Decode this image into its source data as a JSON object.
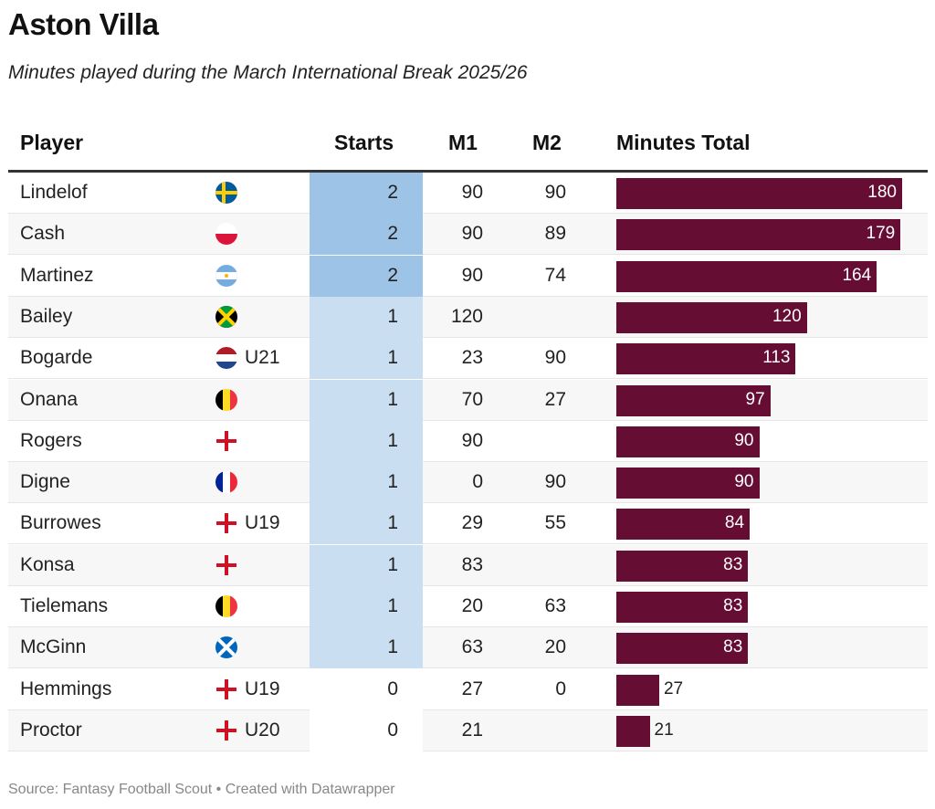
{
  "title": "Aston Villa",
  "subtitle": "Minutes played during the March International Break 2025/26",
  "source": "Source: Fantasy Football Scout • Created with Datawrapper",
  "colors": {
    "bar": "#650d33",
    "starts2": "#9dc3e6",
    "starts1": "#c9def0",
    "zebra": "#f7f7f7"
  },
  "chart_data": {
    "type": "table",
    "columns": [
      "Player",
      "",
      "Starts",
      "M1",
      "M2",
      "Minutes Total"
    ],
    "bar_max": 180,
    "rows": [
      {
        "player": "Lindelof",
        "flag": "sweden",
        "tag": "",
        "starts": "2",
        "m1": "90",
        "m2": "90",
        "total": 180
      },
      {
        "player": "Cash",
        "flag": "poland",
        "tag": "",
        "starts": "2",
        "m1": "90",
        "m2": "89",
        "total": 179
      },
      {
        "player": "Martinez",
        "flag": "argentina",
        "tag": "",
        "starts": "2",
        "m1": "90",
        "m2": "74",
        "total": 164
      },
      {
        "player": "Bailey",
        "flag": "jamaica",
        "tag": "",
        "starts": "1",
        "m1": "120",
        "m2": "",
        "total": 120
      },
      {
        "player": "Bogarde",
        "flag": "netherlands",
        "tag": "U21",
        "starts": "1",
        "m1": "23",
        "m2": "90",
        "total": 113
      },
      {
        "player": "Onana",
        "flag": "belgium",
        "tag": "",
        "starts": "1",
        "m1": "70",
        "m2": "27",
        "total": 97
      },
      {
        "player": "Rogers",
        "flag": "england",
        "tag": "",
        "starts": "1",
        "m1": "90",
        "m2": "",
        "total": 90
      },
      {
        "player": "Digne",
        "flag": "france",
        "tag": "",
        "starts": "1",
        "m1": "0",
        "m2": "90",
        "total": 90
      },
      {
        "player": "Burrowes",
        "flag": "england",
        "tag": "U19",
        "starts": "1",
        "m1": "29",
        "m2": "55",
        "total": 84
      },
      {
        "player": "Konsa",
        "flag": "england",
        "tag": "",
        "starts": "1",
        "m1": "83",
        "m2": "",
        "total": 83
      },
      {
        "player": "Tielemans",
        "flag": "belgium",
        "tag": "",
        "starts": "1",
        "m1": "20",
        "m2": "63",
        "total": 83
      },
      {
        "player": "McGinn",
        "flag": "scotland",
        "tag": "",
        "starts": "1",
        "m1": "63",
        "m2": "20",
        "total": 83
      },
      {
        "player": "Hemmings",
        "flag": "england",
        "tag": "U19",
        "starts": "0",
        "m1": "27",
        "m2": "0",
        "total": 27
      },
      {
        "player": "Proctor",
        "flag": "england",
        "tag": "U20",
        "starts": "0",
        "m1": "21",
        "m2": "",
        "total": 21
      }
    ]
  }
}
